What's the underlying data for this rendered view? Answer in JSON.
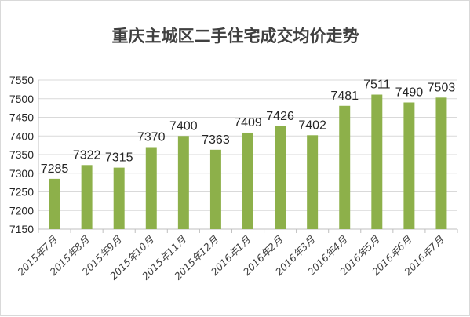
{
  "chart_data": {
    "type": "bar",
    "title": "重庆主城区二手住宅成交均价走势",
    "xlabel": "",
    "ylabel": "",
    "categories": [
      "2015年7月",
      "2015年8月",
      "2015年9月",
      "2015年10月",
      "2015年11月",
      "2015年12月",
      "2016年1月",
      "2016年2月",
      "2016年3月",
      "2016年4月",
      "2016年5月",
      "2016年6月",
      "2016年7月"
    ],
    "values": [
      7285,
      7322,
      7315,
      7370,
      7400,
      7363,
      7409,
      7426,
      7402,
      7481,
      7511,
      7490,
      7503
    ],
    "ylim": [
      7150,
      7550
    ],
    "yticks": [
      7150,
      7200,
      7250,
      7300,
      7350,
      7400,
      7450,
      7500,
      7550
    ],
    "grid": true,
    "legend": "none",
    "bar_color": "#8db04a"
  }
}
